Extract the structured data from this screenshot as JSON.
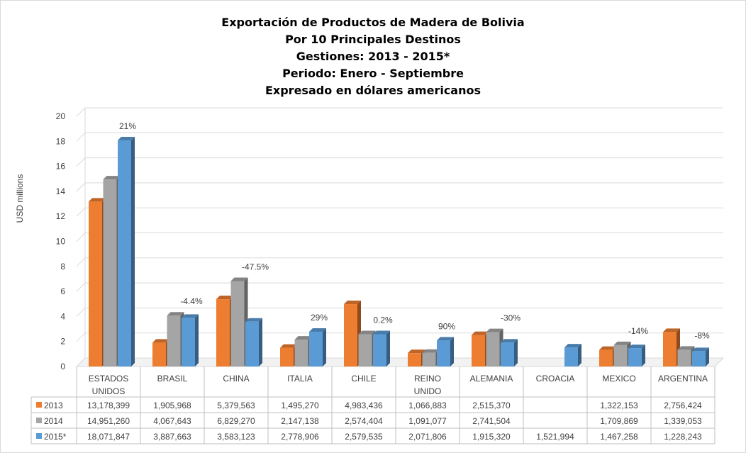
{
  "chart_data": {
    "type": "bar",
    "title_lines": [
      "Exportación de Productos de Madera de Bolivia",
      "Por 10 Principales Destinos",
      "Gestiones: 2013 - 2015*",
      "Periodo: Enero - Septiembre",
      "Expresado en dólares americanos"
    ],
    "ylabel": "USD millions",
    "ylim": [
      0,
      20
    ],
    "yticks": [
      "0",
      "2",
      "4",
      "6",
      "8",
      "10",
      "12",
      "14",
      "16",
      "18",
      "20"
    ],
    "grid": true,
    "categories": [
      [
        "ESTADOS",
        "UNIDOS"
      ],
      [
        "BRASIL"
      ],
      [
        "CHINA"
      ],
      [
        "ITALIA"
      ],
      [
        "CHILE"
      ],
      [
        "REINO",
        "UNIDO"
      ],
      [
        "ALEMANIA"
      ],
      [
        "CROACIA"
      ],
      [
        "MEXICO"
      ],
      [
        "ARGENTINA"
      ]
    ],
    "series": [
      {
        "name": "2013",
        "color": "#ed7d31",
        "values": [
          13.178399,
          1.905968,
          5.379563,
          1.49527,
          4.983436,
          1.066883,
          2.51537,
          null,
          1.322153,
          2.756424
        ],
        "labels": [
          "13,178,399",
          "1,905,968",
          "5,379,563",
          "1,495,270",
          "4,983,436",
          "1,066,883",
          "2,515,370",
          "",
          "1,322,153",
          "2,756,424"
        ]
      },
      {
        "name": "2014",
        "color": "#a5a5a5",
        "values": [
          14.95126,
          4.067643,
          6.82927,
          2.147138,
          2.574404,
          1.091077,
          2.741504,
          null,
          1.709869,
          1.339053
        ],
        "labels": [
          "14,951,260",
          "4,067,643",
          "6,829,270",
          "2,147,138",
          "2,574,404",
          "1,091,077",
          "2,741,504",
          "",
          "1,709,869",
          "1,339,053"
        ]
      },
      {
        "name": "2015*",
        "color": "#5b9bd5",
        "values": [
          18.071847,
          3.887663,
          3.583123,
          2.778906,
          2.579535,
          2.071806,
          1.91532,
          1.521994,
          1.467258,
          1.228243
        ],
        "labels": [
          "18,071,847",
          "3,887,663",
          "3,583,123",
          "2,778,906",
          "2,579,535",
          "2,071,806",
          "1,915,320",
          "1,521,994",
          "1,467,258",
          "1,228,243"
        ]
      }
    ],
    "annotations": [
      "21%",
      "-4.4%",
      "-47.5%",
      "29%",
      "0.2%",
      "90%",
      "-30%",
      "",
      "-14%",
      "-8%"
    ]
  }
}
